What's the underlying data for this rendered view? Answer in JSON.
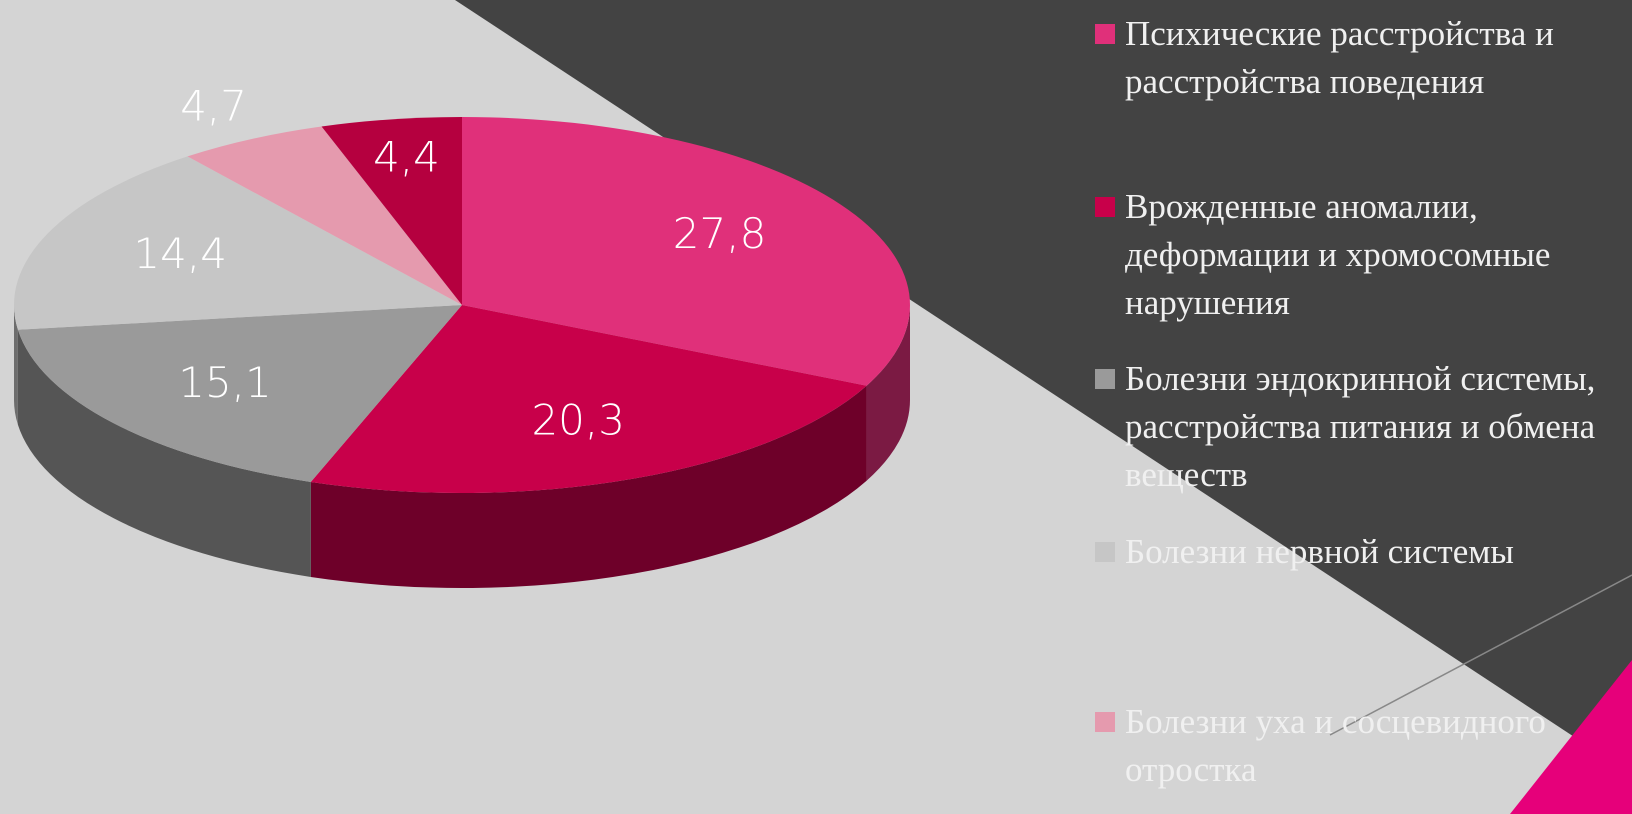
{
  "chart_data": {
    "type": "pie",
    "categories": [
      "Психические расстройства и расстройства поведения",
      "Врожденные аномалии, деформации и хромосомные нарушения",
      "Болезни эндокринной системы, расстройства питания и обмена веществ",
      "Болезни нервной системы",
      "Болезни уха и сосцевидного отростка",
      null
    ],
    "values": [
      27.8,
      20.3,
      15.1,
      14.4,
      4.7,
      4.4
    ],
    "value_labels": [
      "27,8",
      "20,3",
      "15,1",
      "14,4",
      "4,7",
      "4,4"
    ],
    "colors": [
      "#e0307a",
      "#c8004a",
      "#9a9a9a",
      "#c6c6c6",
      "#e59aae",
      "#b5003f"
    ],
    "legend": "right"
  }
}
